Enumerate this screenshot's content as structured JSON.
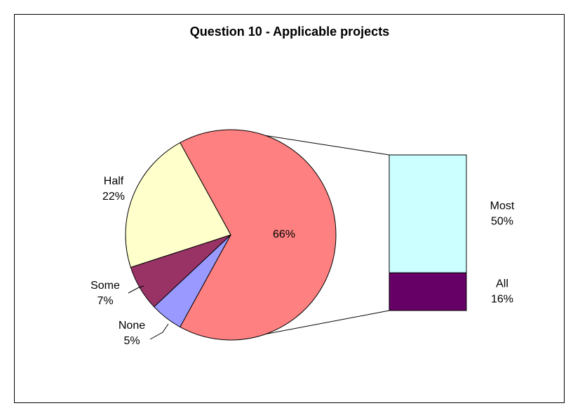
{
  "chart_data": {
    "type": "bar-of-pie",
    "title": "Question 10 - Applicable projects",
    "categories": [
      null,
      "None",
      "Some",
      "Half"
    ],
    "values": [
      66,
      5,
      7,
      22
    ],
    "value_labels": [
      "66%",
      "5%",
      "7%",
      "22%"
    ],
    "colors": [
      "#ff8080",
      "#9999ff",
      "#993366",
      "#ffffcc"
    ],
    "bar": {
      "categories": [
        "Most",
        "All"
      ],
      "values": [
        50,
        16
      ],
      "value_labels": [
        "50%",
        "16%"
      ],
      "colors": [
        "#ccffff",
        "#660066"
      ]
    }
  }
}
